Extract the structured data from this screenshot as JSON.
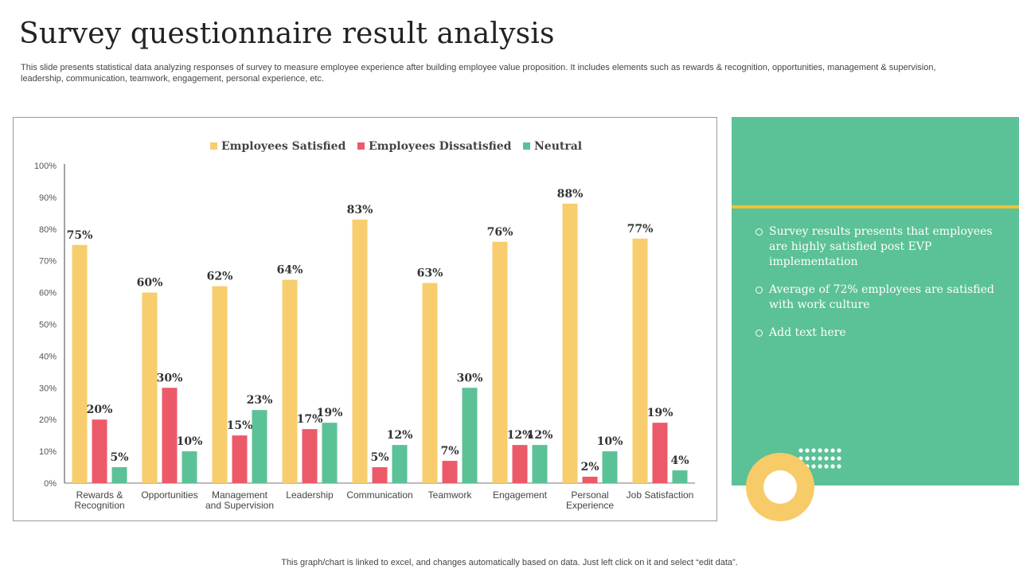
{
  "title": "Survey questionnaire result analysis",
  "subtitle": "This slide presents statistical data analyzing responses of survey to  measure employee experience after building employee value proposition. It includes elements such as rewards & recognition, opportunities, management & supervision, leadership, communication, teamwork, engagement, personal experience, etc.",
  "panel": {
    "bullets": [
      "Survey results presents that employees are highly satisfied post EVP implementation",
      "Average of 72% employees are satisfied with work culture",
      "Add text here"
    ]
  },
  "footer": "This graph/chart is linked to excel,  and changes automatically based on data. Just left click on it and select “edit data”.",
  "colors": {
    "satisfied": "#f7cd6e",
    "dissatisfied": "#ec5a6a",
    "neutral": "#5bc196",
    "panel": "#5bc196",
    "accent_line": "#f2c233"
  },
  "chart_data": {
    "type": "bar",
    "categories": [
      "Rewards & Recognition",
      "Opportunities",
      "Management and Supervision",
      "Leadership",
      "Communication",
      "Teamwork",
      "Engagement",
      "Personal Experience",
      "Job Satisfaction"
    ],
    "category_lines": [
      [
        "Rewards &",
        "Recognition"
      ],
      [
        "Opportunities"
      ],
      [
        "Management",
        "and Supervision"
      ],
      [
        "Leadership"
      ],
      [
        "Communication"
      ],
      [
        "Teamwork"
      ],
      [
        "Engagement"
      ],
      [
        "Personal",
        "Experience"
      ],
      [
        "Job Satisfaction"
      ]
    ],
    "series": [
      {
        "name": "Employees Satisfied",
        "color": "#f7cd6e",
        "values": [
          75,
          60,
          62,
          64,
          83,
          63,
          76,
          88,
          77
        ]
      },
      {
        "name": "Employees Dissatisfied",
        "color": "#ec5a6a",
        "values": [
          20,
          30,
          15,
          17,
          5,
          7,
          12,
          2,
          19
        ]
      },
      {
        "name": "Neutral",
        "color": "#5bc196",
        "values": [
          5,
          10,
          23,
          19,
          12,
          30,
          12,
          10,
          4
        ]
      }
    ],
    "ylim": [
      0,
      100
    ],
    "yticks": [
      "0%",
      "10%",
      "20%",
      "30%",
      "40%",
      "50%",
      "60%",
      "70%",
      "80%",
      "90%",
      "100%"
    ],
    "value_suffix": "%",
    "legend_position": "top",
    "grid": false
  }
}
